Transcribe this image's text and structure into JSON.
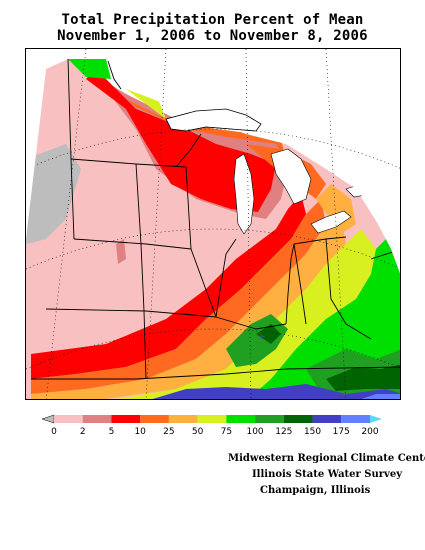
{
  "title": {
    "line1": "Total Precipitation Percent of Mean",
    "line2": "November 1, 2006 to November 8, 2006"
  },
  "legend": {
    "stops": [
      "0",
      "2",
      "5",
      "10",
      "25",
      "50",
      "75",
      "100",
      "125",
      "150",
      "175",
      "200"
    ],
    "colors": [
      "#bdbdbd",
      "#f8c0c0",
      "#e08080",
      "#ff0000",
      "#ff6a20",
      "#ffb040",
      "#d8f020",
      "#00e000",
      "#20a020",
      "#006400",
      "#4040c0",
      "#6080ff",
      "#60d8f8"
    ]
  },
  "credits": {
    "line1": "Midwestern Regional Climate Center",
    "line2": "Illinois State Water Survey",
    "line3": "Champaign, Illinois"
  }
}
